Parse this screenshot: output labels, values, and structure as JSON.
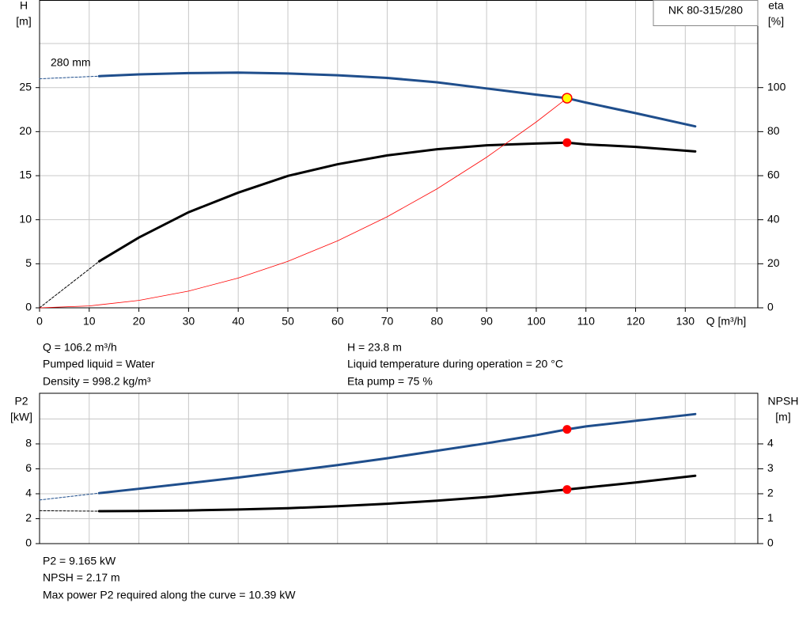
{
  "chart_data": [
    {
      "type": "line",
      "title": "NK 80-315/280",
      "ylabel": "H",
      "yunit": "[m]",
      "y2label": "eta",
      "y2unit": "[%]",
      "xlabel": "Q [m³/h]",
      "xlim": [
        0,
        144.6
      ],
      "ylim": [
        0,
        34.9
      ],
      "y2lim": [
        0,
        139.6
      ],
      "xticks": [
        0,
        10,
        20,
        30,
        40,
        50,
        60,
        70,
        80,
        90,
        100,
        110,
        120,
        130
      ],
      "xgrid": [
        140
      ],
      "yticks": [
        0,
        5,
        10,
        15,
        20,
        25
      ],
      "ygrid": [
        30
      ],
      "y2ticks": [
        0,
        20,
        40,
        60,
        80,
        100
      ],
      "grid": true,
      "series": [
        {
          "name": "280 mm",
          "color": "#1f4e8c",
          "width": 3,
          "axis": "y",
          "x": [
            12,
            20,
            30,
            40,
            50,
            60,
            70,
            80,
            90,
            100,
            106.2,
            110,
            120,
            132
          ],
          "values": [
            26.3,
            26.5,
            26.65,
            26.7,
            26.6,
            26.4,
            26.1,
            25.6,
            24.9,
            24.2,
            23.8,
            23.3,
            22.1,
            20.6
          ]
        },
        {
          "color": "#1f4e8c",
          "width": 1,
          "dashed": true,
          "axis": "y",
          "x": [
            0,
            12
          ],
          "values": [
            26.0,
            26.3
          ]
        },
        {
          "color": "#000000",
          "width": 3,
          "axis": "y2",
          "x": [
            12,
            20,
            30,
            40,
            50,
            60,
            70,
            80,
            90,
            100,
            106.2,
            110,
            120,
            132
          ],
          "values": [
            21.1,
            31.9,
            43.4,
            52.3,
            59.9,
            65.2,
            69.2,
            72,
            73.8,
            74.6,
            75,
            74.2,
            73.1,
            71
          ]
        },
        {
          "color": "#000000",
          "width": 1,
          "dashed": true,
          "axis": "y2",
          "x": [
            0,
            12
          ],
          "values": [
            0,
            21.1
          ]
        },
        {
          "color": "#ff0000",
          "width": 0.8,
          "axis": "y",
          "x": [
            0,
            10,
            20,
            30,
            40,
            50,
            60,
            70,
            80,
            90,
            100,
            106.2
          ],
          "values": [
            0,
            0.21,
            0.84,
            1.9,
            3.38,
            5.28,
            7.6,
            10.34,
            13.5,
            17.09,
            21.1,
            23.8
          ]
        },
        {
          "color": "#ffff00",
          "edge": "#ff0000",
          "marker": true,
          "axis": "y",
          "x": [
            106.2
          ],
          "values": [
            23.8
          ]
        },
        {
          "color": "#ff0000",
          "marker": true,
          "axis": "y2",
          "x": [
            106.2
          ],
          "values": [
            75
          ]
        }
      ],
      "annotations": [
        "Q = 106.2 m³/h",
        "Pumped liquid = Water",
        "Density = 998.2 kg/m³",
        "H = 23.8 m",
        "Liquid temperature during operation = 20 °C",
        "Eta pump = 75 %"
      ]
    },
    {
      "type": "line",
      "ylabel": "P2",
      "yunit": "[kW]",
      "y2label": "NPSH",
      "y2unit": "[m]",
      "xlim": [
        0,
        144.6
      ],
      "ylim": [
        0,
        12.06
      ],
      "y2lim": [
        0,
        6.03
      ],
      "xgrid": [
        0,
        10,
        20,
        30,
        40,
        50,
        60,
        70,
        80,
        90,
        100,
        110,
        120,
        130,
        140
      ],
      "yticks": [
        0,
        2,
        4,
        6,
        8
      ],
      "ygrid": [
        10
      ],
      "y2ticks": [
        0,
        1,
        2,
        3,
        4
      ],
      "grid": true,
      "series": [
        {
          "color": "#1f4e8c",
          "width": 3,
          "axis": "y",
          "x": [
            12,
            20,
            30,
            40,
            50,
            60,
            70,
            80,
            90,
            100,
            106.2,
            110,
            120,
            132
          ],
          "values": [
            4.05,
            4.4,
            4.85,
            5.3,
            5.8,
            6.3,
            6.85,
            7.45,
            8.05,
            8.7,
            9.165,
            9.4,
            9.85,
            10.39
          ]
        },
        {
          "color": "#1f4e8c",
          "width": 1,
          "dashed": true,
          "axis": "y",
          "x": [
            0,
            12
          ],
          "values": [
            3.5,
            4.05
          ]
        },
        {
          "color": "#000000",
          "width": 3,
          "axis": "y2",
          "x": [
            12,
            20,
            30,
            40,
            50,
            60,
            70,
            80,
            90,
            100,
            106.2,
            110,
            120,
            132
          ],
          "values": [
            1.3,
            1.31,
            1.33,
            1.37,
            1.42,
            1.5,
            1.6,
            1.72,
            1.87,
            2.05,
            2.17,
            2.25,
            2.45,
            2.72
          ]
        },
        {
          "color": "#000000",
          "width": 1,
          "dashed": true,
          "axis": "y2",
          "x": [
            0,
            12
          ],
          "values": [
            1.32,
            1.3
          ]
        },
        {
          "color": "#ff0000",
          "marker": true,
          "axis": "y",
          "x": [
            106.2
          ],
          "values": [
            9.165
          ]
        },
        {
          "color": "#ff0000",
          "marker": true,
          "axis": "y2",
          "x": [
            106.2
          ],
          "values": [
            2.17
          ]
        }
      ],
      "annotations": [
        "P2 = 9.165 kW",
        "NPSH = 2.17 m",
        "Max power P2 required along the curve = 10.39 kW"
      ]
    }
  ]
}
